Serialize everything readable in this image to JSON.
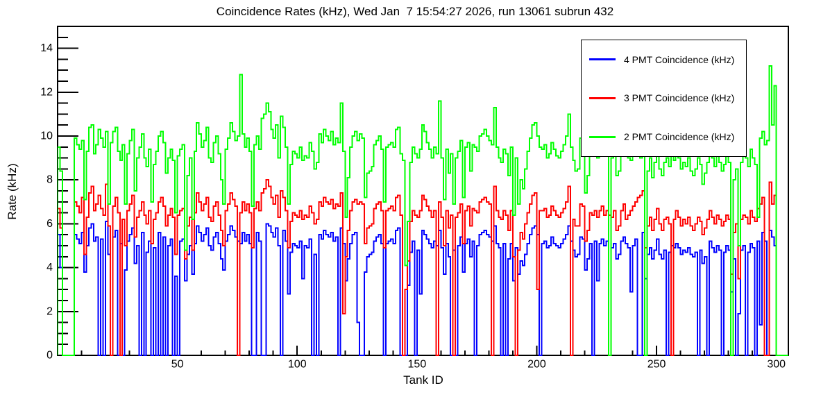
{
  "title": "Coincidence Rates (kHz), Wed Jan  7 15:54:27 2026, run 13061 subrun 432",
  "colors": {
    "background": "#ffffff",
    "axis": "#000000",
    "text": "#000000",
    "series_4pmt": "#0000ff",
    "series_3pmt": "#ff0000",
    "series_2pmt": "#00ff00"
  },
  "legend": {
    "position": "top-right"
  },
  "chart_data": {
    "type": "line",
    "style": "step-histogram",
    "title": "Coincidence Rates (kHz), Wed Jan  7 15:54:27 2026, run 13061 subrun 432",
    "xlabel": "Tank ID",
    "ylabel": "Rate (kHz)",
    "xlim": [
      0,
      305
    ],
    "ylim": [
      0,
      15
    ],
    "first_bin_id": 1,
    "bin_width": 1,
    "x_ticks_major": [
      50,
      100,
      150,
      200,
      250,
      300
    ],
    "x_minor_step": 10,
    "y_ticks_major": [
      0,
      2,
      4,
      6,
      8,
      10,
      12,
      14
    ],
    "y_minor_step": 0.5,
    "grid": false,
    "legend_position": "top-right",
    "series": [
      {
        "name": "4 PMT Coincidence (kHz)",
        "color": "#0000ff",
        "values": [
          5.5,
          4.0,
          0,
          0,
          0,
          0,
          0,
          5.5,
          5.3,
          5.1,
          5.6,
          3.8,
          5.0,
          5.8,
          6.0,
          5.2,
          5.4,
          0,
          5.3,
          0,
          6.1,
          4.6,
          0,
          5.4,
          5.7,
          0,
          5.1,
          0,
          3.9,
          5.2,
          5.5,
          5.8,
          4.2,
          5.0,
          0,
          5.6,
          0,
          4.7,
          5.2,
          0,
          4.9,
          0,
          5.6,
          0,
          5.4,
          0,
          5.0,
          5.3,
          0,
          3.6,
          0,
          5.2,
          5.3,
          3.4,
          4.6,
          5.0,
          3.7,
          5.1,
          5.9,
          5.6,
          5.2,
          5.5,
          5.8,
          5.0,
          4.8,
          5.4,
          5.6,
          5.1,
          4.4,
          3.9,
          5.2,
          5.5,
          5.9,
          5.7,
          5.4,
          5.2,
          5.1,
          5.6,
          5.2,
          5.5,
          5.1,
          0,
          0,
          5.6,
          5.2,
          0,
          0,
          6.0,
          5.9,
          5.6,
          5.4,
          5.8,
          5.0,
          0,
          5.7,
          5.2,
          2.8,
          4.7,
          5.1,
          5.0,
          4.9,
          5.2,
          3.5,
          5.0,
          4.9,
          5.3,
          0,
          4.6,
          0,
          5.5,
          5.3,
          5.7,
          5.5,
          5.4,
          5.6,
          5.2,
          5.4,
          0,
          5.8,
          5.1,
          3.4,
          4.4,
          5.1,
          5.5,
          5.6,
          1.5,
          0,
          0,
          3.8,
          4.5,
          4.6,
          4.7,
          5.2,
          5.4,
          5.5,
          5.1,
          0,
          5.1,
          5.2,
          5.3,
          5.1,
          5.7,
          5.8,
          0,
          0,
          0,
          3.2,
          4.7,
          5.2,
          0,
          4.8,
          2.8,
          5.7,
          5.5,
          5.3,
          5.1,
          4.9,
          5.2,
          5.0,
          5.7,
          4.9,
          3.7,
          5.1,
          4.5,
          0,
          4.8,
          0,
          5.0,
          5.4,
          3.8,
          5.1,
          5.3,
          4.5,
          5.2,
          0,
          5.0,
          5.5,
          5.6,
          5.7,
          5.5,
          5.4,
          5.2,
          5.9,
          5.1,
          4.9,
          0,
          5.1,
          0,
          4.4,
          5.1,
          3.4,
          4.9,
          3.7,
          4.3,
          4.1,
          4.6,
          5.1,
          5.5,
          5.8,
          5.9,
          5.5,
          0,
          5.1,
          5.2,
          4.9,
          5.0,
          5.4,
          5.1,
          5.0,
          4.9,
          5.1,
          5.3,
          5.5,
          5.9,
          5.2,
          4.8,
          4.5,
          4.6,
          5.4,
          5.3,
          3.9,
          4.4,
          5.1,
          0,
          5.2,
          3.4,
          5.1,
          5.3,
          5.0,
          5.2,
          0,
          4.9,
          5.1,
          4.4,
          4.6,
          5.2,
          5.4,
          5.1,
          4.9,
          2.9,
          5.0,
          5.3,
          0,
          0,
          5.6,
          3.5,
          4.6,
          4.9,
          4.4,
          4.8,
          5.3,
          4.6,
          4.4,
          4.8,
          0,
          4.7,
          5.0,
          4.9,
          5.1,
          4.9,
          4.6,
          4.8,
          4.7,
          4.9,
          4.6,
          4.5,
          4.7,
          0,
          4.8,
          4.2,
          4.5,
          0,
          5.2,
          4.9,
          4.7,
          5.0,
          4.8,
          0,
          4.7,
          5.0,
          4.8,
          2.9,
          4.4,
          0,
          1.9,
          4.8,
          5.0,
          0,
          4.7,
          5.1,
          4.9,
          0,
          5.2,
          1.4,
          5.6,
          5.2,
          0,
          5.7,
          5.4,
          5.0,
          0,
          0,
          0,
          0,
          0
        ]
      },
      {
        "name": "3 PMT Coincidence (kHz)",
        "color": "#ff0000",
        "values": [
          6.7,
          5.8,
          0,
          0,
          0,
          0,
          0,
          7.0,
          6.8,
          6.5,
          7.2,
          4.6,
          6.3,
          7.4,
          7.7,
          6.6,
          6.9,
          7.3,
          6.7,
          6.4,
          7.8,
          5.9,
          0,
          6.8,
          7.2,
          6.5,
          0,
          6.2,
          5.0,
          6.6,
          6.9,
          7.3,
          5.4,
          6.3,
          6.6,
          7.0,
          6.4,
          6.0,
          6.6,
          5.1,
          6.2,
          6.5,
          7.0,
          7.2,
          6.8,
          5.9,
          6.4,
          6.7,
          6.3,
          4.6,
          6.4,
          6.6,
          6.7,
          4.4,
          5.9,
          6.3,
          4.8,
          6.5,
          7.4,
          7.0,
          6.6,
          6.9,
          7.2,
          6.3,
          6.1,
          6.8,
          7.0,
          6.4,
          5.7,
          5.0,
          6.6,
          6.9,
          7.4,
          7.1,
          6.8,
          0,
          6.5,
          7.0,
          6.6,
          6.9,
          6.5,
          4.9,
          6.7,
          7.0,
          6.6,
          7.4,
          7.6,
          8.0,
          7.7,
          7.2,
          6.9,
          7.3,
          6.3,
          7.5,
          7.2,
          6.6,
          4.9,
          6.1,
          6.5,
          6.4,
          6.3,
          6.6,
          6.2,
          6.4,
          6.3,
          6.8,
          6.5,
          6.0,
          6.2,
          7.0,
          6.8,
          7.2,
          7.0,
          6.9,
          7.1,
          6.7,
          6.9,
          6.8,
          7.4,
          1.9,
          4.5,
          5.7,
          6.6,
          7.0,
          7.1,
          6.9,
          7.0,
          6.9,
          5.1,
          5.8,
          5.9,
          6.0,
          6.7,
          6.9,
          7.0,
          6.6,
          4.9,
          6.6,
          6.7,
          6.8,
          6.6,
          7.2,
          7.3,
          6.4,
          0,
          3.0,
          4.3,
          6.1,
          6.6,
          6.4,
          6.3,
          6.6,
          7.3,
          7.1,
          6.8,
          6.6,
          6.3,
          6.6,
          0,
          7.0,
          6.3,
          5.0,
          6.6,
          5.8,
          6.4,
          0,
          6.3,
          6.5,
          6.9,
          5.1,
          6.6,
          6.8,
          5.9,
          6.7,
          6.6,
          6.5,
          7.0,
          7.1,
          7.2,
          7.0,
          6.9,
          0,
          7.7,
          6.6,
          6.3,
          6.2,
          6.6,
          6.4,
          5.7,
          6.6,
          4.5,
          0,
          4.8,
          5.6,
          5.3,
          6.0,
          6.5,
          6.9,
          7.3,
          7.4,
          3.0,
          6.6,
          6.6,
          6.7,
          6.3,
          6.4,
          6.8,
          6.6,
          6.4,
          6.3,
          6.5,
          6.7,
          7.0,
          7.7,
          0,
          6.2,
          5.9,
          5.9,
          6.9,
          6.8,
          5.2,
          5.7,
          6.5,
          6.4,
          6.6,
          6.3,
          6.6,
          6.8,
          6.4,
          6.6,
          6.4,
          6.3,
          6.6,
          5.7,
          5.9,
          6.6,
          6.9,
          6.2,
          6.4,
          6.6,
          6.8,
          7.0,
          7.2,
          7.3,
          7.5,
          4.9,
          5.9,
          6.3,
          5.7,
          6.2,
          6.7,
          6.0,
          5.7,
          6.2,
          6.3,
          6.0,
          0,
          6.2,
          6.6,
          6.3,
          5.9,
          6.2,
          6.0,
          6.3,
          5.9,
          5.7,
          6.0,
          6.3,
          6.1,
          5.5,
          5.8,
          6.2,
          6.6,
          6.3,
          6.0,
          6.4,
          6.2,
          5.9,
          6.1,
          6.4,
          6.2,
          3.7,
          5.6,
          6.0,
          3.5,
          6.2,
          6.4,
          6.3,
          6.0,
          6.6,
          6.3,
          6.1,
          6.7,
          6.9,
          7.2,
          0,
          0,
          7.9,
          6.9,
          7.3,
          0,
          0,
          0,
          0,
          0
        ]
      },
      {
        "name": "2 PMT Coincidence (kHz)",
        "color": "#00ff00",
        "values": [
          9.5,
          8.4,
          0,
          0,
          0,
          0,
          0,
          9.9,
          9.6,
          9.4,
          9.8,
          7.1,
          9.3,
          10.4,
          10.5,
          9.2,
          9.6,
          10.3,
          9.9,
          9.5,
          10.2,
          6.9,
          9.7,
          10.2,
          10.4,
          9.3,
          8.9,
          9.6,
          6.9,
          9.2,
          9.8,
          10.3,
          7.5,
          9.0,
          9.5,
          10.1,
          9.0,
          8.6,
          9.4,
          7.0,
          8.7,
          9.3,
          10.0,
          10.2,
          9.7,
          8.3,
          9.0,
          9.4,
          8.9,
          6.5,
          9.1,
          9.4,
          9.6,
          4.8,
          8.2,
          9.0,
          6.2,
          9.3,
          10.6,
          10.1,
          9.5,
          9.8,
          10.4,
          9.0,
          8.8,
          9.7,
          10.0,
          9.2,
          8.0,
          6.9,
          9.4,
          9.9,
          10.6,
          10.2,
          9.8,
          10.0,
          12.8,
          10.1,
          9.5,
          9.9,
          9.3,
          6.8,
          9.6,
          10.0,
          9.4,
          10.8,
          11.0,
          11.5,
          11.1,
          10.3,
          9.9,
          10.5,
          9.0,
          10.9,
          10.4,
          9.5,
          6.9,
          8.7,
          9.3,
          9.2,
          9.0,
          9.5,
          8.9,
          9.1,
          9.0,
          9.7,
          9.3,
          8.5,
          8.8,
          10.1,
          9.7,
          10.3,
          10.0,
          9.8,
          10.2,
          9.6,
          9.9,
          9.7,
          11.5,
          9.3,
          6.3,
          8.1,
          9.5,
          10.0,
          10.2,
          9.8,
          10.1,
          9.9,
          7.2,
          8.3,
          8.4,
          8.6,
          9.6,
          9.8,
          10.0,
          9.4,
          7.0,
          9.5,
          9.6,
          9.7,
          9.5,
          10.3,
          10.4,
          9.2,
          8.9,
          4.1,
          6.1,
          8.8,
          9.5,
          9.2,
          9.0,
          9.4,
          10.5,
          10.2,
          9.7,
          9.4,
          9.0,
          9.5,
          9.2,
          11.6,
          9.0,
          7.1,
          9.4,
          8.3,
          9.2,
          6.9,
          9.0,
          9.3,
          9.8,
          7.2,
          9.5,
          9.7,
          8.4,
          9.6,
          9.5,
          9.3,
          10.0,
          10.1,
          10.3,
          10.0,
          9.8,
          9.6,
          11.3,
          9.5,
          9.0,
          8.8,
          9.4,
          9.2,
          8.2,
          9.5,
          6.4,
          9.0,
          6.9,
          8.0,
          7.6,
          8.5,
          9.3,
          9.9,
          10.5,
          10.6,
          10.0,
          9.5,
          9.4,
          9.6,
          9.0,
          9.2,
          9.7,
          9.4,
          9.1,
          9.0,
          9.3,
          9.6,
          10.0,
          11.0,
          9.5,
          8.9,
          8.4,
          8.5,
          9.9,
          9.7,
          7.4,
          8.2,
          9.3,
          9.1,
          9.5,
          9.0,
          9.4,
          9.7,
          9.2,
          9.5,
          0,
          9.0,
          9.4,
          8.2,
          8.4,
          9.5,
          9.8,
          9.4,
          9.0,
          8.9,
          9.2,
          9.6,
          9.3,
          9.0,
          9.4,
          0,
          8.4,
          9.0,
          8.1,
          8.8,
          9.6,
          8.5,
          8.2,
          8.8,
          9.0,
          8.6,
          9.2,
          8.9,
          9.4,
          9.0,
          8.5,
          8.8,
          8.6,
          9.0,
          8.4,
          8.2,
          8.5,
          9.0,
          8.7,
          7.8,
          8.3,
          8.8,
          9.5,
          9.0,
          8.6,
          9.1,
          8.8,
          8.4,
          8.7,
          9.2,
          8.8,
          0,
          8.0,
          8.5,
          5.0,
          8.8,
          9.2,
          9.0,
          8.6,
          9.4,
          9.0,
          8.7,
          6.3,
          9.9,
          10.2,
          9.6,
          9.8,
          13.2,
          10.5,
          12.3,
          0,
          0,
          0,
          0,
          0
        ]
      }
    ]
  }
}
